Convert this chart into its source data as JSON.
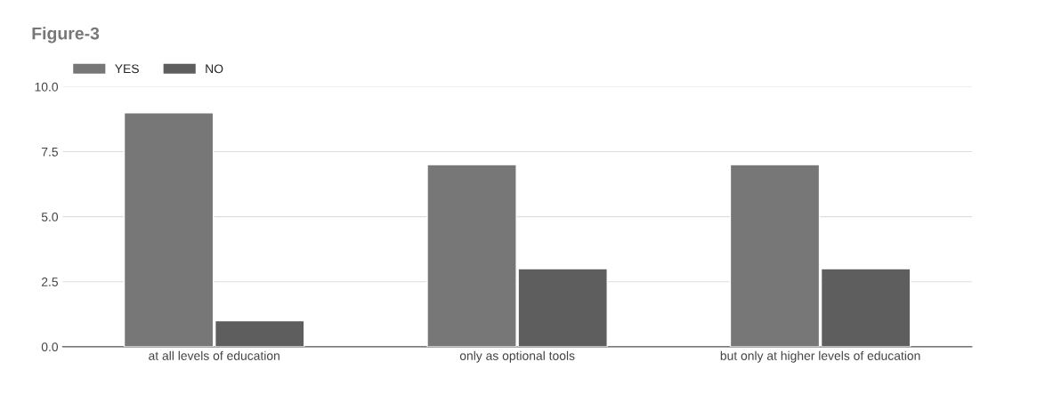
{
  "chart_data": {
    "type": "bar",
    "title": "Figure-3",
    "categories": [
      "at all levels of education",
      "only as optional tools",
      "but only at higher levels of education"
    ],
    "series": [
      {
        "name": "YES",
        "color": "#777777",
        "values": [
          9,
          7,
          7
        ]
      },
      {
        "name": "NO",
        "color": "#5e5e5e",
        "values": [
          1,
          3,
          3
        ]
      }
    ],
    "ylim": [
      0,
      10
    ],
    "yticks": [
      {
        "value": 0,
        "label": "0.0"
      },
      {
        "value": 2.5,
        "label": "2.5"
      },
      {
        "value": 5,
        "label": "5.0"
      },
      {
        "value": 7.5,
        "label": "7.5"
      },
      {
        "value": 10,
        "label": "10.0"
      }
    ],
    "grid": "y",
    "legend": "top left"
  }
}
